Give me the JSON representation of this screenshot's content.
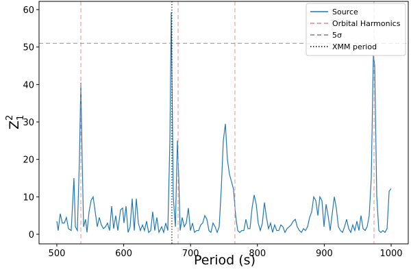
{
  "chart_data": {
    "type": "line",
    "xlabel": "Period (s)",
    "ylabel": {
      "base": "Z",
      "sub": "1",
      "sup": "2"
    },
    "x": [
      500.0,
      502.0,
      505.1,
      508.2,
      511.3,
      514.3,
      517.4,
      521.5,
      525.6,
      527.7,
      530.7,
      533.8,
      535.9,
      537.9,
      540.0,
      543.0,
      545.1,
      548.2,
      551.2,
      554.3,
      557.4,
      560.5,
      563.5,
      566.6,
      569.7,
      572.7,
      575.8,
      578.9,
      582.0,
      585.0,
      588.1,
      591.2,
      595.3,
      598.4,
      600.4,
      603.5,
      606.6,
      609.6,
      612.7,
      615.8,
      618.9,
      621.9,
      625.0,
      628.1,
      631.1,
      634.2,
      637.3,
      640.4,
      643.4,
      646.5,
      649.6,
      652.7,
      656.8,
      659.8,
      662.9,
      666.0,
      669.1,
      671.1,
      674.2,
      677.3,
      680.3,
      682.4,
      684.4,
      687.5,
      690.6,
      693.6,
      696.7,
      699.8,
      702.9,
      705.9,
      709.0,
      712.1,
      715.2,
      718.2,
      721.3,
      724.4,
      727.5,
      730.5,
      733.6,
      736.7,
      739.8,
      742.8,
      745.9,
      749.0,
      752.1,
      755.1,
      758.2,
      761.3,
      764.3,
      767.4,
      770.5,
      773.6,
      776.6,
      779.7,
      782.8,
      785.9,
      788.9,
      792.0,
      795.1,
      798.2,
      801.2,
      804.3,
      807.4,
      810.5,
      813.5,
      816.6,
      819.7,
      822.7,
      825.8,
      828.9,
      832.0,
      835.0,
      838.1,
      841.2,
      844.3,
      847.3,
      850.4,
      853.5,
      856.6,
      859.6,
      862.7,
      865.8,
      868.9,
      871.9,
      875.0,
      878.1,
      881.2,
      884.2,
      887.3,
      890.4,
      893.4,
      896.5,
      899.6,
      902.7,
      905.7,
      908.8,
      911.9,
      915.0,
      918.0,
      921.1,
      924.2,
      927.3,
      930.3,
      933.4,
      936.5,
      939.6,
      942.6,
      945.7,
      948.8,
      951.8,
      954.9,
      958.0,
      961.1,
      964.1,
      967.2,
      970.3,
      973.4,
      975.4,
      978.5,
      981.6,
      984.7,
      987.7,
      990.8,
      993.9,
      997.0,
      1000.0
    ],
    "series": [
      {
        "name": "Source",
        "color": "#1f77b4",
        "values": [
          3.5,
          1,
          5.5,
          3,
          3,
          4.5,
          1.5,
          1,
          15,
          2,
          1,
          20,
          40.5,
          20,
          2,
          4,
          0.5,
          6,
          9,
          10,
          6,
          2,
          4.5,
          2.5,
          1.5,
          2,
          3,
          1,
          7.5,
          1.5,
          5,
          1,
          6.5,
          7,
          3,
          7.5,
          0.5,
          2,
          9.5,
          1,
          9.5,
          3,
          1,
          2.5,
          1,
          3.5,
          0.5,
          1,
          6,
          1,
          4.5,
          0.5,
          2,
          0.5,
          3,
          1,
          25,
          59.3,
          10,
          2,
          25,
          15,
          1,
          4.5,
          2,
          3,
          7,
          1,
          3,
          0.5,
          1,
          1,
          2.5,
          3,
          5,
          4,
          1,
          0.5,
          3,
          2,
          0.5,
          2,
          12,
          25,
          29.5,
          20,
          16,
          14,
          12,
          5,
          1,
          0.5,
          1,
          1,
          4,
          1.5,
          1.5,
          7,
          10.5,
          8,
          3,
          1,
          3,
          8.5,
          4.5,
          1.5,
          3,
          0.5,
          2.5,
          1,
          1,
          2.5,
          2,
          0.5,
          1.5,
          2,
          2.5,
          3.5,
          4,
          2,
          1,
          0.5,
          1.5,
          1,
          2,
          4.5,
          6,
          10,
          9,
          5,
          10,
          9,
          2,
          8,
          5,
          1,
          5.5,
          10,
          7,
          2,
          1,
          0.5,
          2,
          4,
          1.5,
          0.5,
          2.5,
          1,
          3.5,
          1,
          5,
          1.5,
          1,
          2,
          5,
          15,
          48,
          45,
          10,
          1,
          0.5,
          1,
          0.5,
          1.5,
          11.5,
          12.2
        ]
      }
    ],
    "reference_lines": [
      {
        "name": "Orbital Harmonics",
        "orientation": "vertical",
        "values": [
          535.9,
          681.4,
          766.4,
          974.4
        ],
        "color": "#f08080",
        "dash": "dashed"
      },
      {
        "name": "5σ",
        "orientation": "horizontal",
        "values": [
          51
        ],
        "color": "#808080",
        "dash": "dashed"
      },
      {
        "name": "XMM period",
        "orientation": "vertical",
        "values": [
          672.1
        ],
        "color": "#000000",
        "dash": "dotted"
      }
    ],
    "xlim": [
      473.4,
      1025.6
    ],
    "ylim": [
      -2.56,
      62.2
    ],
    "xticks": [
      500,
      600,
      700,
      800,
      900,
      1000
    ],
    "yticks": [
      0,
      10,
      20,
      30,
      40,
      50,
      60
    ],
    "legend": "upper right"
  }
}
